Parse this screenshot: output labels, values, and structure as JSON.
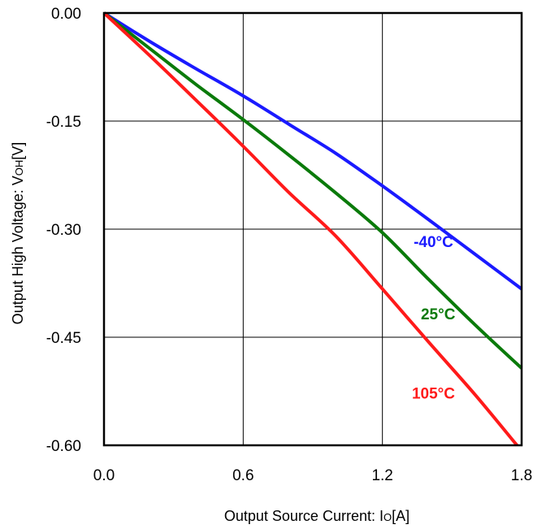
{
  "chart_data": {
    "type": "line",
    "title": "",
    "xlabel": "Output Source Current: IO[A]",
    "ylabel": "Output High Voltage: VOH[V]",
    "xlabel_parts": {
      "main": "Output Source Current: I",
      "sub": "O",
      "unit": "[A]"
    },
    "ylabel_parts": {
      "main": "Output High Voltage: V",
      "sub": "OH",
      "unit": "[V]"
    },
    "xlim": [
      0.0,
      1.8
    ],
    "ylim": [
      -0.6,
      0.0
    ],
    "xticks": [
      "0.0",
      "0.6",
      "1.2",
      "1.8"
    ],
    "yticks": [
      "0.00",
      "-0.15",
      "-0.30",
      "-0.45",
      "-0.60"
    ],
    "xtick_values": [
      0.0,
      0.6,
      1.2,
      1.8
    ],
    "ytick_values": [
      0.0,
      -0.15,
      -0.3,
      -0.45,
      -0.6
    ],
    "grid": true,
    "legend": "none",
    "series": [
      {
        "name": "-40°C",
        "color": "#1a1aff",
        "x": [
          0.0,
          0.2,
          0.4,
          0.6,
          0.8,
          1.0,
          1.2,
          1.4,
          1.6,
          1.8
        ],
        "y": [
          0.0,
          -0.04,
          -0.078,
          -0.115,
          -0.155,
          -0.195,
          -0.24,
          -0.287,
          -0.335,
          -0.383
        ]
      },
      {
        "name": "25°C",
        "color": "#0a7a0a",
        "x": [
          0.0,
          0.2,
          0.4,
          0.6,
          0.8,
          1.0,
          1.2,
          1.4,
          1.6,
          1.8
        ],
        "y": [
          0.0,
          -0.05,
          -0.1,
          -0.148,
          -0.198,
          -0.25,
          -0.305,
          -0.37,
          -0.433,
          -0.493
        ]
      },
      {
        "name": "105°C",
        "color": "#ff1a1a",
        "x": [
          0.0,
          0.2,
          0.4,
          0.6,
          0.8,
          1.0,
          1.2,
          1.4,
          1.6,
          1.78
        ],
        "y": [
          0.0,
          -0.06,
          -0.122,
          -0.185,
          -0.25,
          -0.31,
          -0.383,
          -0.457,
          -0.53,
          -0.6
        ]
      }
    ],
    "annotations": [
      {
        "text": "-40°C",
        "series": "-40°C",
        "x": 1.42,
        "y": -0.325
      },
      {
        "text": "25°C",
        "series": "25°C",
        "x": 1.44,
        "y": -0.425
      },
      {
        "text": "105°C",
        "series": "105°C",
        "x": 1.42,
        "y": -0.535
      }
    ]
  }
}
